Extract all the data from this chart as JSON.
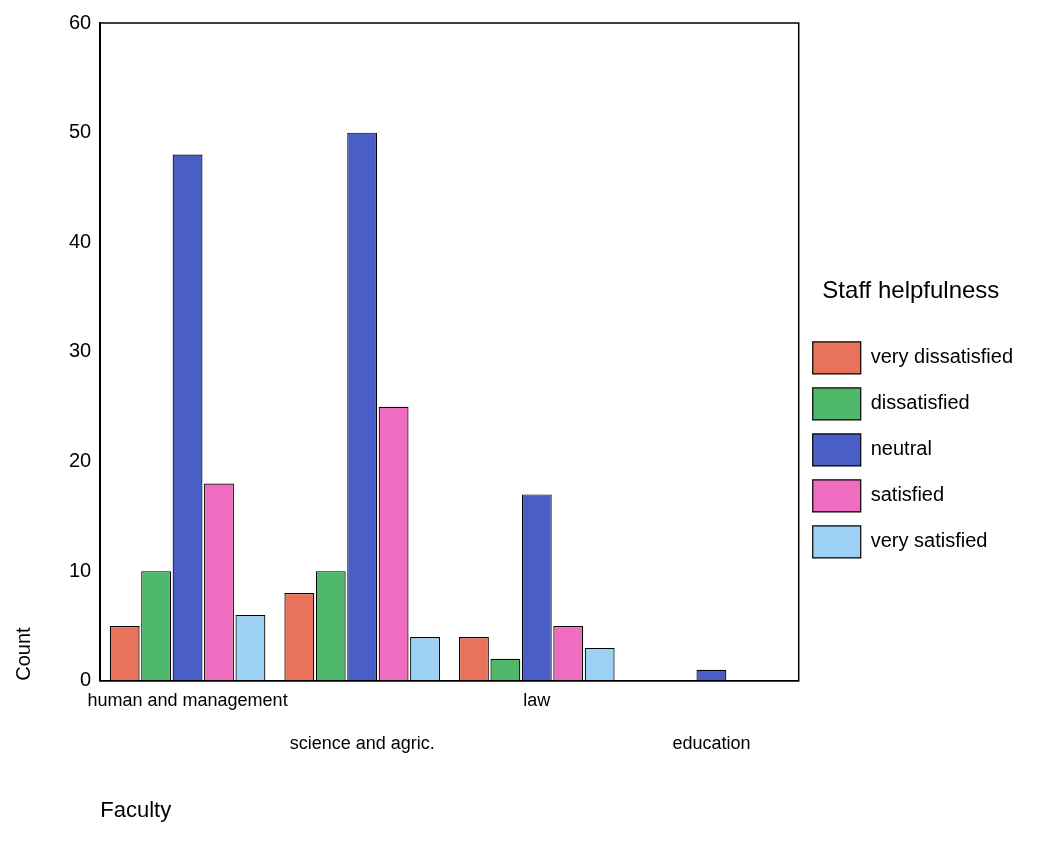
{
  "chart_data": {
    "type": "bar",
    "xlabel": "Faculty",
    "ylabel": "Count",
    "legend_title": "Staff helpfulness",
    "legend": "right",
    "grid": false,
    "categories": [
      "human and management",
      "science and agric.",
      "law",
      "education"
    ],
    "series": [
      {
        "name": "very dissatisfied",
        "color": "#e8735a",
        "values": [
          5,
          8,
          4,
          0
        ]
      },
      {
        "name": "dissatisfied",
        "color": "#4fb86a",
        "values": [
          10,
          10,
          2,
          0
        ]
      },
      {
        "name": "neutral",
        "color": "#4a5ec8",
        "values": [
          48,
          50,
          17,
          1
        ]
      },
      {
        "name": "satisfied",
        "color": "#f06cc0",
        "values": [
          18,
          25,
          5,
          0
        ]
      },
      {
        "name": "very satisfied",
        "color": "#9dd0f5",
        "values": [
          6,
          4,
          3,
          0
        ]
      }
    ],
    "ylim": [
      0,
      60
    ],
    "yticks": [
      0,
      10,
      20,
      30,
      40,
      50,
      60
    ]
  }
}
